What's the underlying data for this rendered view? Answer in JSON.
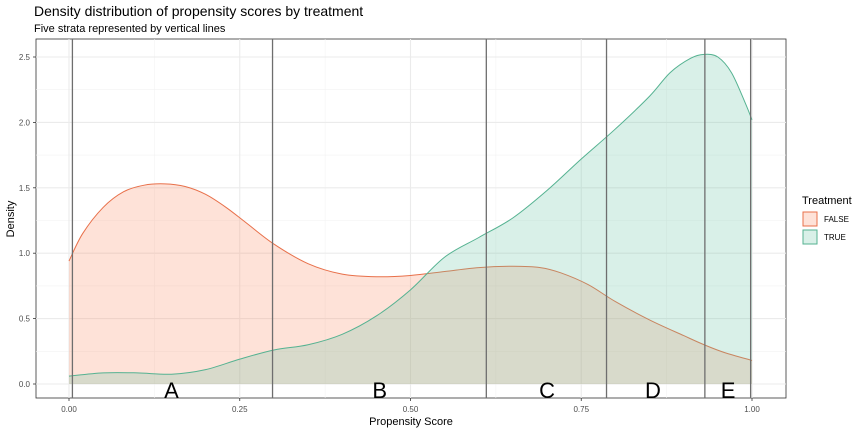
{
  "chart_data": {
    "type": "area",
    "title": "Density distribution of propensity scores by treatment",
    "subtitle": "Five strata represented by vertical lines",
    "xlabel": "Propensity Score",
    "ylabel": "Density",
    "xlim": [
      0.0,
      1.0
    ],
    "ylim": [
      0.0,
      2.55
    ],
    "xticks": [
      "0.00",
      "0.25",
      "0.50",
      "0.75",
      "1.00"
    ],
    "xtick_values": [
      0.0,
      0.25,
      0.5,
      0.75,
      1.0
    ],
    "yticks": [
      "0.0",
      "0.5",
      "1.0",
      "1.5",
      "2.0",
      "2.5"
    ],
    "ytick_values": [
      0.0,
      0.5,
      1.0,
      1.5,
      2.0,
      2.5
    ],
    "grid": true,
    "legend": {
      "title": "Treatment",
      "position": "right"
    },
    "series": [
      {
        "name": "FALSE",
        "fill": "#fc8d62",
        "stroke": "#e8704a",
        "x": [
          0.0,
          0.02,
          0.05,
          0.08,
          0.11,
          0.14,
          0.17,
          0.2,
          0.23,
          0.26,
          0.3,
          0.35,
          0.4,
          0.45,
          0.5,
          0.55,
          0.6,
          0.65,
          0.69,
          0.72,
          0.76,
          0.8,
          0.85,
          0.9,
          0.93,
          0.96,
          1.0
        ],
        "values": [
          0.94,
          1.15,
          1.35,
          1.47,
          1.52,
          1.53,
          1.51,
          1.45,
          1.35,
          1.23,
          1.07,
          0.92,
          0.84,
          0.82,
          0.83,
          0.86,
          0.89,
          0.9,
          0.89,
          0.85,
          0.76,
          0.63,
          0.49,
          0.37,
          0.3,
          0.24,
          0.18
        ]
      },
      {
        "name": "TRUE",
        "fill": "#66c2a5",
        "stroke": "#55b291",
        "x": [
          0.0,
          0.05,
          0.1,
          0.15,
          0.2,
          0.25,
          0.3,
          0.35,
          0.4,
          0.45,
          0.5,
          0.55,
          0.6,
          0.65,
          0.7,
          0.75,
          0.8,
          0.85,
          0.88,
          0.91,
          0.93,
          0.95,
          0.97,
          0.99,
          1.0
        ],
        "values": [
          0.06,
          0.085,
          0.085,
          0.075,
          0.11,
          0.19,
          0.26,
          0.3,
          0.38,
          0.52,
          0.72,
          0.97,
          1.12,
          1.27,
          1.48,
          1.72,
          1.95,
          2.2,
          2.38,
          2.49,
          2.52,
          2.5,
          2.38,
          2.15,
          2.02
        ]
      }
    ],
    "strata": {
      "boundaries": [
        0.005,
        0.298,
        0.611,
        0.787,
        0.931,
        0.998
      ],
      "labels": [
        "A",
        "B",
        "C",
        "D",
        "E"
      ],
      "label_x": [
        0.15,
        0.455,
        0.7,
        0.855,
        0.965
      ]
    }
  }
}
